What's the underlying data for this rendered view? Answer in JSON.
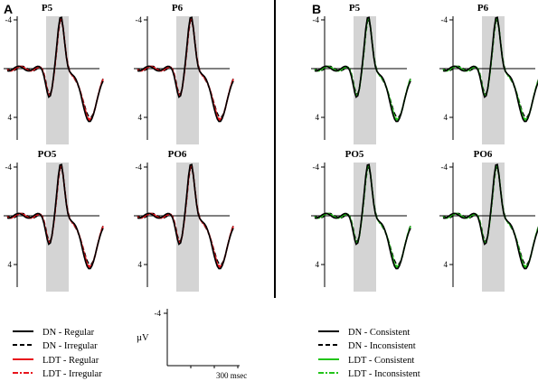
{
  "figure": {
    "panel_labels": [
      "A",
      "B"
    ],
    "colors": {
      "black": "#000000",
      "red": "#e8141c",
      "green": "#22c41a",
      "window_fill": "#d4d4d4",
      "divider": "#000000"
    }
  },
  "chart_data": [
    {
      "type": "line",
      "panel": "A",
      "title": "P5",
      "y_ticks": [
        "-4",
        "4"
      ],
      "y_inverted": true,
      "series": [
        {
          "name": "DN - Regular",
          "color": "#000000",
          "style": "solid"
        },
        {
          "name": "DN - Irregular",
          "color": "#000000",
          "style": "dashed"
        },
        {
          "name": "LDT - Regular",
          "color": "#e8141c",
          "style": "solid"
        },
        {
          "name": "LDT - Irregular",
          "color": "#e8141c",
          "style": "dashdot"
        }
      ]
    },
    {
      "type": "line",
      "panel": "A",
      "title": "P6",
      "y_ticks": [
        "-4",
        "4"
      ],
      "y_inverted": true
    },
    {
      "type": "line",
      "panel": "A",
      "title": "PO5",
      "y_ticks": [
        "-4",
        "4"
      ],
      "y_inverted": true
    },
    {
      "type": "line",
      "panel": "A",
      "title": "PO6",
      "y_ticks": [
        "-4",
        "4"
      ],
      "y_inverted": true
    },
    {
      "type": "line",
      "panel": "B",
      "title": "P5",
      "y_ticks": [
        "-4",
        "4"
      ],
      "y_inverted": true,
      "series": [
        {
          "name": "DN - Consistent",
          "color": "#000000",
          "style": "solid"
        },
        {
          "name": "DN - Inconsistent",
          "color": "#000000",
          "style": "dashed"
        },
        {
          "name": "LDT - Consistent",
          "color": "#22c41a",
          "style": "solid"
        },
        {
          "name": "LDT - Inconsistent",
          "color": "#22c41a",
          "style": "dashdot"
        }
      ]
    },
    {
      "type": "line",
      "panel": "B",
      "title": "P6",
      "y_ticks": [
        "-4",
        "4"
      ],
      "y_inverted": true
    },
    {
      "type": "line",
      "panel": "B",
      "title": "PO5",
      "y_ticks": [
        "-4",
        "4"
      ],
      "y_inverted": true
    },
    {
      "type": "line",
      "panel": "B",
      "title": "PO6",
      "y_ticks": [
        "-4",
        "4"
      ],
      "y_inverted": true
    }
  ],
  "legend_a": [
    {
      "label": "DN - Regular",
      "color": "#000000",
      "style": "solid"
    },
    {
      "label": "DN - Irregular",
      "color": "#000000",
      "style": "dashed"
    },
    {
      "label": "LDT - Regular",
      "color": "#e8141c",
      "style": "solid"
    },
    {
      "label": "LDT - Irregular",
      "color": "#e8141c",
      "style": "dashdot"
    }
  ],
  "legend_b": [
    {
      "label": "DN - Consistent",
      "color": "#000000",
      "style": "solid"
    },
    {
      "label": "DN - Inconsistent",
      "color": "#000000",
      "style": "dashed"
    },
    {
      "label": "LDT - Consistent",
      "color": "#22c41a",
      "style": "solid"
    },
    {
      "label": "LDT - Inconsistent",
      "color": "#22c41a",
      "style": "dashdot"
    }
  ],
  "scale_bar": {
    "y_tick": "-4",
    "unit_label": "µV",
    "x_label": "300 msec"
  }
}
